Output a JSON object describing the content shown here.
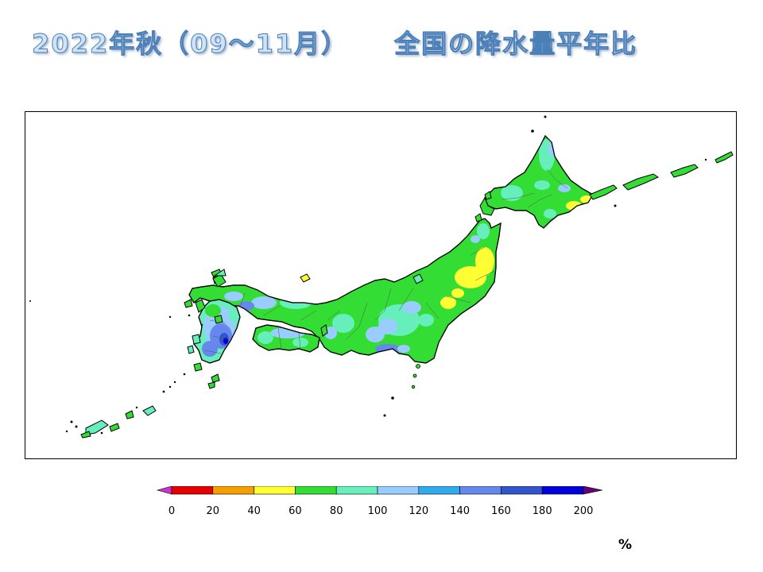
{
  "title": {
    "period": "2022年秋（09～11月）",
    "subject": "全国の降水量平年比"
  },
  "legend": {
    "unit": "%",
    "ticks": [
      "0",
      "20",
      "40",
      "60",
      "80",
      "100",
      "120",
      "140",
      "160",
      "180",
      "200"
    ],
    "colors": [
      "#e60000",
      "#f5a000",
      "#ffff33",
      "#33dd33",
      "#66eebb",
      "#99ccff",
      "#33aaee",
      "#6688ee",
      "#3355cc",
      "#0000dd"
    ],
    "under_color": "#cc33cc",
    "over_color": "#660077"
  },
  "map": {
    "land_base_color": "#33dd33",
    "sea_color": "#ffffff"
  }
}
